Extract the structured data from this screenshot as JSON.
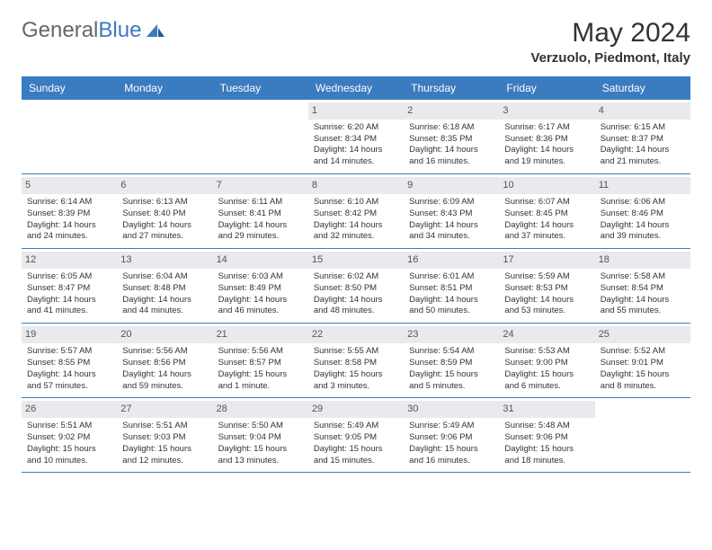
{
  "logo": {
    "text_part1": "General",
    "text_part2": "Blue"
  },
  "header": {
    "month_title": "May 2024",
    "location": "Verzuolo, Piedmont, Italy"
  },
  "colors": {
    "header_bar": "#3b7bbf",
    "day_number_bg": "#e8eaed",
    "text": "#333333"
  },
  "days_of_week": [
    "Sunday",
    "Monday",
    "Tuesday",
    "Wednesday",
    "Thursday",
    "Friday",
    "Saturday"
  ],
  "weeks": [
    [
      {
        "n": "",
        "sunrise": "",
        "sunset": "",
        "daylight": ""
      },
      {
        "n": "",
        "sunrise": "",
        "sunset": "",
        "daylight": ""
      },
      {
        "n": "",
        "sunrise": "",
        "sunset": "",
        "daylight": ""
      },
      {
        "n": "1",
        "sunrise": "Sunrise: 6:20 AM",
        "sunset": "Sunset: 8:34 PM",
        "daylight": "Daylight: 14 hours and 14 minutes."
      },
      {
        "n": "2",
        "sunrise": "Sunrise: 6:18 AM",
        "sunset": "Sunset: 8:35 PM",
        "daylight": "Daylight: 14 hours and 16 minutes."
      },
      {
        "n": "3",
        "sunrise": "Sunrise: 6:17 AM",
        "sunset": "Sunset: 8:36 PM",
        "daylight": "Daylight: 14 hours and 19 minutes."
      },
      {
        "n": "4",
        "sunrise": "Sunrise: 6:15 AM",
        "sunset": "Sunset: 8:37 PM",
        "daylight": "Daylight: 14 hours and 21 minutes."
      }
    ],
    [
      {
        "n": "5",
        "sunrise": "Sunrise: 6:14 AM",
        "sunset": "Sunset: 8:39 PM",
        "daylight": "Daylight: 14 hours and 24 minutes."
      },
      {
        "n": "6",
        "sunrise": "Sunrise: 6:13 AM",
        "sunset": "Sunset: 8:40 PM",
        "daylight": "Daylight: 14 hours and 27 minutes."
      },
      {
        "n": "7",
        "sunrise": "Sunrise: 6:11 AM",
        "sunset": "Sunset: 8:41 PM",
        "daylight": "Daylight: 14 hours and 29 minutes."
      },
      {
        "n": "8",
        "sunrise": "Sunrise: 6:10 AM",
        "sunset": "Sunset: 8:42 PM",
        "daylight": "Daylight: 14 hours and 32 minutes."
      },
      {
        "n": "9",
        "sunrise": "Sunrise: 6:09 AM",
        "sunset": "Sunset: 8:43 PM",
        "daylight": "Daylight: 14 hours and 34 minutes."
      },
      {
        "n": "10",
        "sunrise": "Sunrise: 6:07 AM",
        "sunset": "Sunset: 8:45 PM",
        "daylight": "Daylight: 14 hours and 37 minutes."
      },
      {
        "n": "11",
        "sunrise": "Sunrise: 6:06 AM",
        "sunset": "Sunset: 8:46 PM",
        "daylight": "Daylight: 14 hours and 39 minutes."
      }
    ],
    [
      {
        "n": "12",
        "sunrise": "Sunrise: 6:05 AM",
        "sunset": "Sunset: 8:47 PM",
        "daylight": "Daylight: 14 hours and 41 minutes."
      },
      {
        "n": "13",
        "sunrise": "Sunrise: 6:04 AM",
        "sunset": "Sunset: 8:48 PM",
        "daylight": "Daylight: 14 hours and 44 minutes."
      },
      {
        "n": "14",
        "sunrise": "Sunrise: 6:03 AM",
        "sunset": "Sunset: 8:49 PM",
        "daylight": "Daylight: 14 hours and 46 minutes."
      },
      {
        "n": "15",
        "sunrise": "Sunrise: 6:02 AM",
        "sunset": "Sunset: 8:50 PM",
        "daylight": "Daylight: 14 hours and 48 minutes."
      },
      {
        "n": "16",
        "sunrise": "Sunrise: 6:01 AM",
        "sunset": "Sunset: 8:51 PM",
        "daylight": "Daylight: 14 hours and 50 minutes."
      },
      {
        "n": "17",
        "sunrise": "Sunrise: 5:59 AM",
        "sunset": "Sunset: 8:53 PM",
        "daylight": "Daylight: 14 hours and 53 minutes."
      },
      {
        "n": "18",
        "sunrise": "Sunrise: 5:58 AM",
        "sunset": "Sunset: 8:54 PM",
        "daylight": "Daylight: 14 hours and 55 minutes."
      }
    ],
    [
      {
        "n": "19",
        "sunrise": "Sunrise: 5:57 AM",
        "sunset": "Sunset: 8:55 PM",
        "daylight": "Daylight: 14 hours and 57 minutes."
      },
      {
        "n": "20",
        "sunrise": "Sunrise: 5:56 AM",
        "sunset": "Sunset: 8:56 PM",
        "daylight": "Daylight: 14 hours and 59 minutes."
      },
      {
        "n": "21",
        "sunrise": "Sunrise: 5:56 AM",
        "sunset": "Sunset: 8:57 PM",
        "daylight": "Daylight: 15 hours and 1 minute."
      },
      {
        "n": "22",
        "sunrise": "Sunrise: 5:55 AM",
        "sunset": "Sunset: 8:58 PM",
        "daylight": "Daylight: 15 hours and 3 minutes."
      },
      {
        "n": "23",
        "sunrise": "Sunrise: 5:54 AM",
        "sunset": "Sunset: 8:59 PM",
        "daylight": "Daylight: 15 hours and 5 minutes."
      },
      {
        "n": "24",
        "sunrise": "Sunrise: 5:53 AM",
        "sunset": "Sunset: 9:00 PM",
        "daylight": "Daylight: 15 hours and 6 minutes."
      },
      {
        "n": "25",
        "sunrise": "Sunrise: 5:52 AM",
        "sunset": "Sunset: 9:01 PM",
        "daylight": "Daylight: 15 hours and 8 minutes."
      }
    ],
    [
      {
        "n": "26",
        "sunrise": "Sunrise: 5:51 AM",
        "sunset": "Sunset: 9:02 PM",
        "daylight": "Daylight: 15 hours and 10 minutes."
      },
      {
        "n": "27",
        "sunrise": "Sunrise: 5:51 AM",
        "sunset": "Sunset: 9:03 PM",
        "daylight": "Daylight: 15 hours and 12 minutes."
      },
      {
        "n": "28",
        "sunrise": "Sunrise: 5:50 AM",
        "sunset": "Sunset: 9:04 PM",
        "daylight": "Daylight: 15 hours and 13 minutes."
      },
      {
        "n": "29",
        "sunrise": "Sunrise: 5:49 AM",
        "sunset": "Sunset: 9:05 PM",
        "daylight": "Daylight: 15 hours and 15 minutes."
      },
      {
        "n": "30",
        "sunrise": "Sunrise: 5:49 AM",
        "sunset": "Sunset: 9:06 PM",
        "daylight": "Daylight: 15 hours and 16 minutes."
      },
      {
        "n": "31",
        "sunrise": "Sunrise: 5:48 AM",
        "sunset": "Sunset: 9:06 PM",
        "daylight": "Daylight: 15 hours and 18 minutes."
      },
      {
        "n": "",
        "sunrise": "",
        "sunset": "",
        "daylight": ""
      }
    ]
  ]
}
